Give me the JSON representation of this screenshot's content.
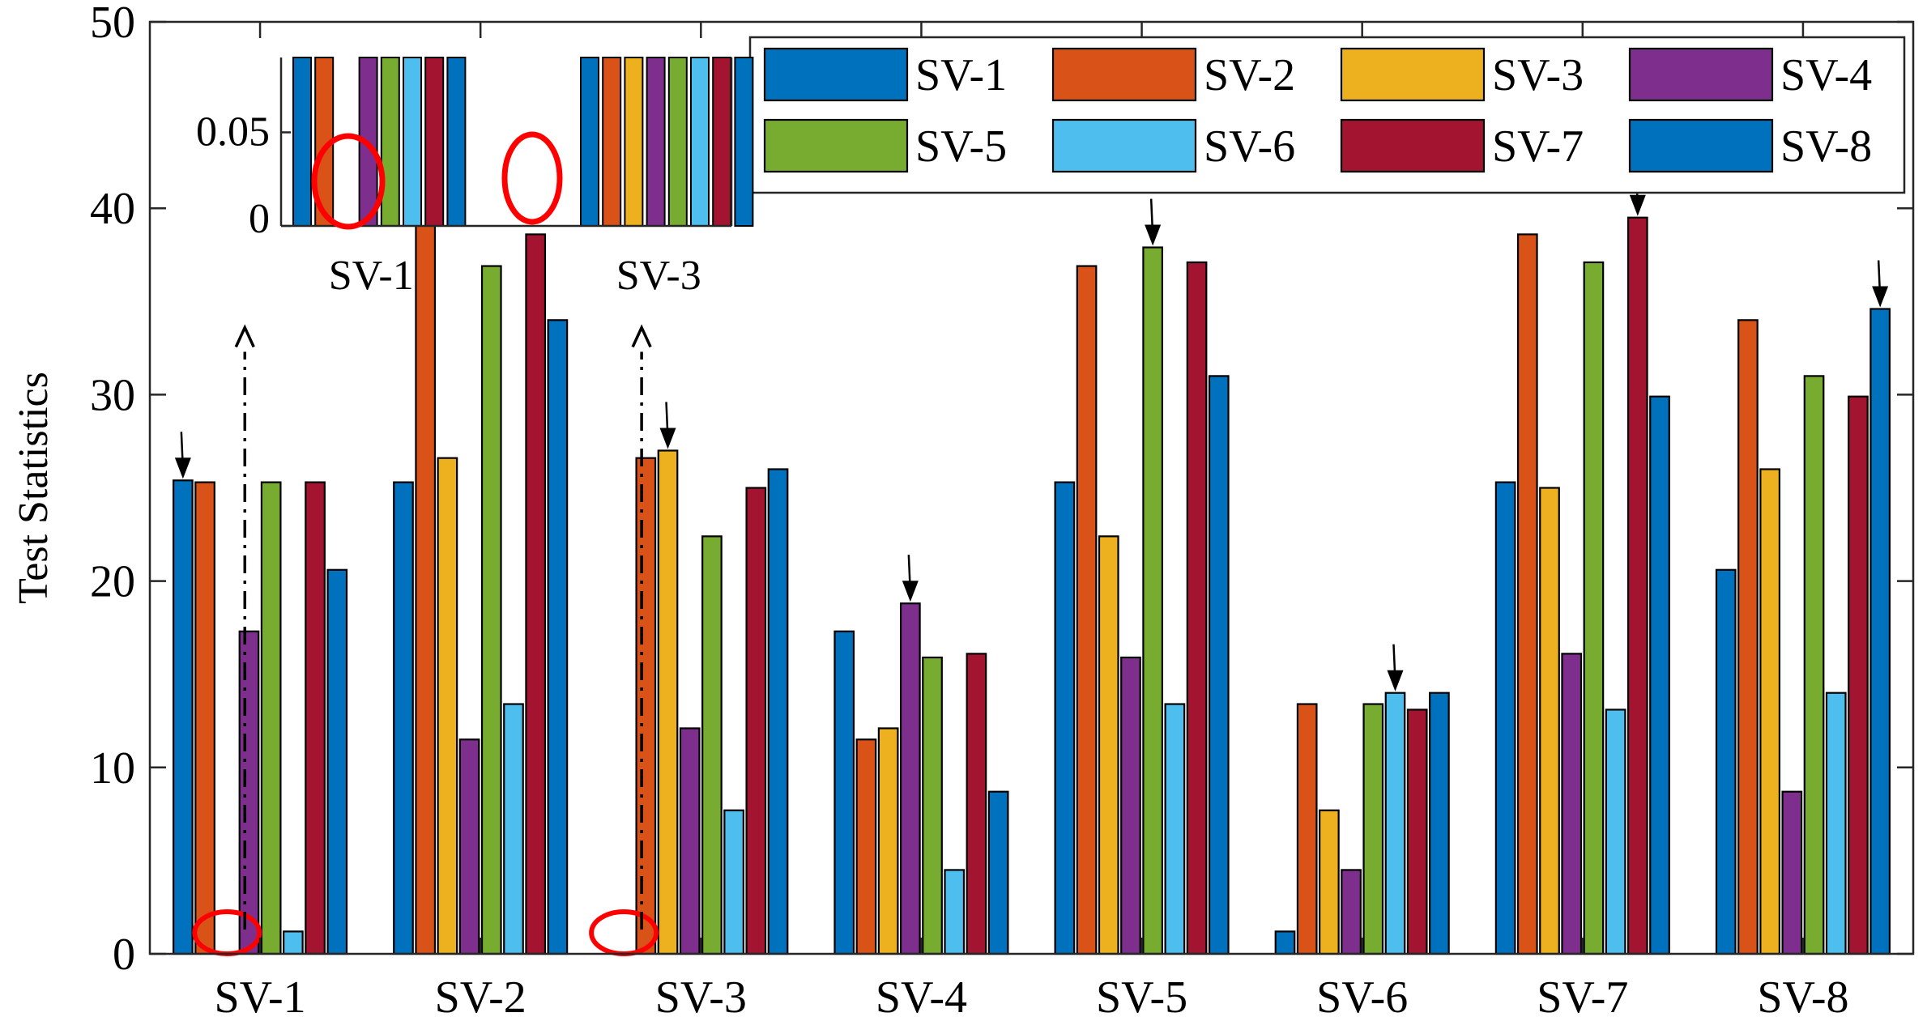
{
  "chart_data": {
    "type": "bar",
    "title": "",
    "xlabel": "",
    "ylabel": "Test Statistics",
    "ylim": [
      0,
      50
    ],
    "yticks": [
      0,
      10,
      20,
      30,
      40,
      50
    ],
    "grid": false,
    "legend_position": "top-right",
    "categories": [
      "SV-1",
      "SV-2",
      "SV-3",
      "SV-4",
      "SV-5",
      "SV-6",
      "SV-7",
      "SV-8"
    ],
    "series": [
      {
        "name": "SV-1",
        "color": "#0072BD",
        "values": [
          25.4,
          25.3,
          0,
          17.3,
          25.3,
          1.2,
          25.3,
          20.6
        ]
      },
      {
        "name": "SV-2",
        "color": "#D95319",
        "values": [
          25.3,
          39.2,
          26.6,
          11.5,
          36.9,
          13.4,
          38.6,
          34.0
        ]
      },
      {
        "name": "SV-3",
        "color": "#EDB120",
        "values": [
          0,
          26.6,
          27.0,
          12.1,
          22.4,
          7.7,
          25.0,
          26.0
        ]
      },
      {
        "name": "SV-4",
        "color": "#7E2F8E",
        "values": [
          17.3,
          11.5,
          12.1,
          18.8,
          15.9,
          4.5,
          16.1,
          8.7
        ]
      },
      {
        "name": "SV-5",
        "color": "#77AC30",
        "values": [
          25.3,
          36.9,
          22.4,
          15.9,
          37.9,
          13.4,
          37.1,
          31.0
        ]
      },
      {
        "name": "SV-6",
        "color": "#4DBEEE",
        "values": [
          1.2,
          13.4,
          7.7,
          4.5,
          13.4,
          14.0,
          13.1,
          14.0
        ]
      },
      {
        "name": "SV-7",
        "color": "#A2142F",
        "values": [
          25.3,
          38.6,
          25.0,
          16.1,
          37.1,
          13.1,
          39.5,
          29.9
        ]
      },
      {
        "name": "SV-8",
        "color": "#0072BD",
        "values": [
          20.6,
          34.0,
          26.0,
          8.7,
          31.0,
          14.0,
          29.9,
          34.6
        ]
      }
    ],
    "inset": {
      "yticks": [
        "0",
        "0.05"
      ],
      "categories": [
        "SV-1",
        "SV-3"
      ],
      "ylim": [
        0,
        0.09
      ],
      "values": {
        "SV-1": [
          0.09,
          0.09,
          0,
          0.09,
          0.09,
          0.09,
          0.09,
          0.09
        ],
        "SV-3": [
          0.09,
          0.09,
          0.09,
          0.09,
          0.09,
          0.09,
          0.09,
          0.09
        ]
      }
    },
    "highlight_arrows": [
      {
        "category": "SV-1",
        "series": "SV-1"
      },
      {
        "category": "SV-2",
        "series": "SV-2"
      },
      {
        "category": "SV-3",
        "series": "SV-3"
      },
      {
        "category": "SV-4",
        "series": "SV-4"
      },
      {
        "category": "SV-5",
        "series": "SV-5"
      },
      {
        "category": "SV-6",
        "series": "SV-6"
      },
      {
        "category": "SV-7",
        "series": "SV-7"
      },
      {
        "category": "SV-8",
        "series": "SV-8"
      }
    ],
    "zero_markers": [
      {
        "category": "SV-1",
        "series": "SV-3"
      },
      {
        "category": "SV-3",
        "series": "SV-1"
      }
    ]
  }
}
